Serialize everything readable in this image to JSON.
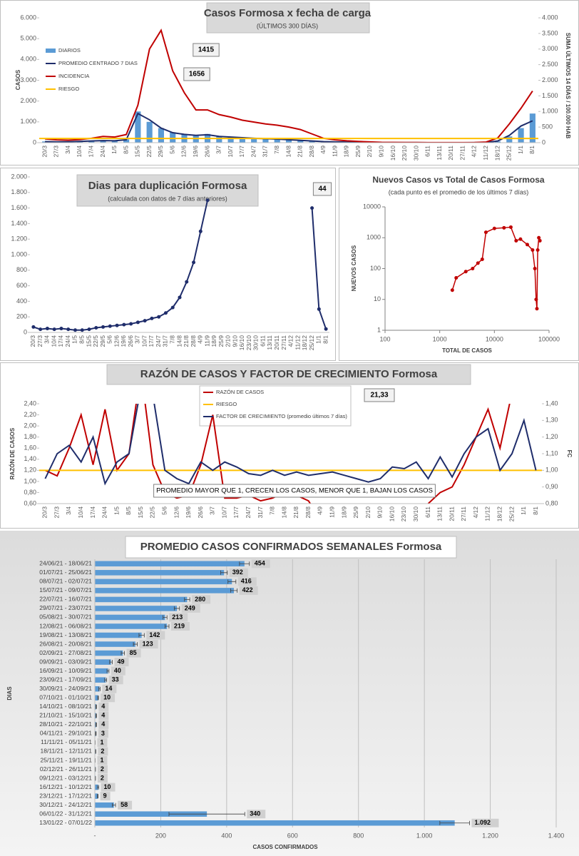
{
  "chart_data": [
    {
      "type": "combo",
      "title": "Casos Formosa x fecha de carga",
      "subtitle": "(ÚLTIMOS 300 DÍAS)",
      "y_label": "CASOS",
      "y2_label": "SUMA ÚLTIMOS 14 DÍAS / 100.000 HAB",
      "annotations": [
        "1415",
        "1656"
      ],
      "categories": [
        "20/3",
        "27/3",
        "3/4",
        "10/4",
        "17/4",
        "24/4",
        "1/5",
        "8/5",
        "15/5",
        "22/5",
        "29/5",
        "5/6",
        "12/6",
        "19/6",
        "26/6",
        "3/7",
        "10/7",
        "17/7",
        "24/7",
        "31/7",
        "7/8",
        "14/8",
        "21/8",
        "28/8",
        "4/9",
        "11/9",
        "18/9",
        "25/9",
        "2/10",
        "9/10",
        "16/10",
        "23/10",
        "30/10",
        "6/11",
        "13/11",
        "20/11",
        "27/11",
        "4/12",
        "11/12",
        "18/12",
        "25/12",
        "1/1",
        "8/1"
      ],
      "series": [
        {
          "name": "DIARIOS",
          "type": "bar",
          "color": "#5b9bd5",
          "values": [
            60,
            40,
            50,
            70,
            90,
            110,
            90,
            160,
            1500,
            1000,
            700,
            500,
            400,
            350,
            420,
            300,
            280,
            250,
            220,
            200,
            180,
            150,
            120,
            90,
            50,
            40,
            30,
            20,
            10,
            5,
            5,
            3,
            3,
            2,
            2,
            2,
            2,
            2,
            5,
            60,
            300,
            700,
            1400
          ]
        },
        {
          "name": "PROMEDIO CENTRADO 7 DIAS",
          "type": "line",
          "color": "#1f2d6b",
          "values": [
            50,
            40,
            45,
            60,
            80,
            100,
            90,
            140,
            1400,
            1100,
            700,
            480,
            400,
            350,
            380,
            300,
            270,
            240,
            210,
            190,
            170,
            140,
            110,
            80,
            50,
            40,
            28,
            18,
            10,
            5,
            4,
            3,
            3,
            2,
            2,
            2,
            2,
            3,
            10,
            80,
            350,
            800,
            1050
          ]
        },
        {
          "name": "INCIDENCIA",
          "type": "line",
          "axis": "y2",
          "color": "#c00000",
          "values": [
            120,
            90,
            80,
            100,
            140,
            200,
            180,
            260,
            1200,
            3000,
            3600,
            2300,
            1600,
            1050,
            1050,
            900,
            820,
            720,
            660,
            600,
            560,
            500,
            420,
            280,
            140,
            90,
            60,
            40,
            25,
            12,
            8,
            6,
            5,
            4,
            4,
            4,
            4,
            6,
            20,
            150,
            600,
            1100,
            1656
          ]
        },
        {
          "name": "RIESGO",
          "type": "line",
          "axis": "y2",
          "color": "#ffc000",
          "value": 133
        }
      ],
      "ylim": [
        0,
        6000
      ],
      "yticks": [
        0,
        {
          "value": 1000,
          "label": "1.000"
        },
        {
          "value": 2000,
          "label": "2.000"
        },
        {
          "value": 3000,
          "label": "3.000"
        },
        {
          "value": 4000,
          "label": "4.000"
        },
        {
          "value": 5000,
          "label": "5.000"
        },
        {
          "value": 6000,
          "label": "6.000"
        }
      ],
      "y2lim": [
        0,
        4000
      ],
      "y2ticks": [
        0,
        500,
        {
          "value": 1000,
          "label": "1.000"
        },
        {
          "value": 1500,
          "label": "1.500"
        },
        {
          "value": 2000,
          "label": "2.000"
        },
        {
          "value": 2500,
          "label": "2.500"
        },
        {
          "value": 3000,
          "label": "3.000"
        },
        {
          "value": 3500,
          "label": "3.500"
        },
        {
          "value": 4000,
          "label": "4.000"
        }
      ],
      "grid": false,
      "legend": "upper-left"
    },
    {
      "type": "line",
      "title": "Dias para duplicación Formosa",
      "subtitle": "(calculada con datos de 7 días anteriores)",
      "annotations": [
        "44"
      ],
      "categories": [
        "20/3",
        "27/3",
        "3/4",
        "10/4",
        "17/4",
        "24/4",
        "1/5",
        "8/5",
        "15/5",
        "22/5",
        "29/5",
        "5/6",
        "12/6",
        "19/6",
        "26/6",
        "3/7",
        "10/7",
        "17/7",
        "24/7",
        "31/7",
        "7/8",
        "14/8",
        "21/8",
        "28/8",
        "4/9",
        "11/9",
        "18/9",
        "25/9",
        "2/10",
        "9/10",
        "16/10",
        "23/10",
        "30/10",
        "6/11",
        "13/11",
        "20/11",
        "27/11",
        "4/12",
        "11/12",
        "18/12",
        "25/12",
        "1/1",
        "8/1"
      ],
      "series": [
        {
          "name": null,
          "color": "#1f2d6b",
          "values": [
            70,
            40,
            50,
            40,
            50,
            40,
            30,
            30,
            40,
            60,
            70,
            80,
            90,
            100,
            110,
            130,
            150,
            180,
            200,
            250,
            320,
            450,
            650,
            900,
            1300,
            1700,
            null,
            null,
            null,
            null,
            null,
            null,
            null,
            null,
            null,
            null,
            null,
            null,
            null,
            null,
            1600,
            300,
            44
          ]
        }
      ],
      "ylim": [
        0,
        2000
      ],
      "yticks": [
        0,
        200,
        400,
        600,
        800,
        {
          "value": 1000,
          "label": "1.000"
        },
        {
          "value": 1200,
          "label": "1.200"
        },
        {
          "value": 1400,
          "label": "1.400"
        },
        {
          "value": 1600,
          "label": "1.600"
        },
        {
          "value": 1800,
          "label": "1.800"
        },
        {
          "value": 2000,
          "label": "2.000"
        }
      ],
      "grid": false
    },
    {
      "type": "scatter",
      "title": "Nuevos Casos vs Total de Casos Formosa",
      "subtitle": "(cada punto es el promedio de los últimos 7 días)",
      "x_label": "TOTAL DE CASOS",
      "y_label": "NUEVOS CASOS",
      "color": "#c00000",
      "x": [
        1700,
        2000,
        3000,
        4000,
        5000,
        6000,
        7000,
        10000,
        15000,
        20000,
        25000,
        30000,
        40000,
        50000,
        55000,
        58000,
        60000,
        62000,
        65000,
        68000
      ],
      "values": [
        20,
        50,
        80,
        100,
        150,
        200,
        1500,
        2000,
        2100,
        2200,
        800,
        900,
        600,
        400,
        100,
        10,
        5,
        400,
        1000,
        800
      ],
      "xlim": [
        100,
        100000
      ],
      "xticks": [
        100,
        1000,
        10000,
        100000
      ],
      "ylim": [
        1,
        10000
      ],
      "yticks": [
        1,
        10,
        100,
        1000,
        10000
      ],
      "log_x": true,
      "log_y": true,
      "grid": false
    },
    {
      "type": "line",
      "title": "RAZÓN DE CASOS Y FACTOR DE CRECIMIENTO Formosa",
      "y_label": "RAZÓN DE CASOS",
      "y2_label": "FC",
      "annotations": [
        "21,33",
        "PROMEDIO MAYOR QUE 1, CRECEN LOS CASOS, MENOR QUE 1, BAJAN LOS CASOS"
      ],
      "categories": [
        "20/3",
        "27/3",
        "3/4",
        "10/4",
        "17/4",
        "24/4",
        "1/5",
        "8/5",
        "15/5",
        "22/5",
        "5/6",
        "12/6",
        "19/6",
        "26/6",
        "3/7",
        "10/7",
        "17/7",
        "24/7",
        "31/7",
        "7/8",
        "14/8",
        "21/8",
        "28/8",
        "4/9",
        "11/9",
        "18/9",
        "25/9",
        "2/10",
        "9/10",
        "16/10",
        "23/10",
        "30/10",
        "6/11",
        "13/11",
        "20/11",
        "27/11",
        "4/12",
        "11/12",
        "18/12",
        "25/12",
        "1/1",
        "8/1"
      ],
      "series": [
        {
          "name": "RAZÓN DE CASOS",
          "color": "#c00000",
          "values": [
            1.2,
            1.1,
            1.6,
            2.2,
            1.3,
            2.3,
            1.2,
            1.5,
            3.0,
            1.3,
            0.8,
            0.7,
            0.75,
            1.3,
            2.2,
            0.7,
            0.7,
            0.75,
            0.65,
            0.7,
            0.8,
            0.75,
            0.65,
            0.3,
            null,
            null,
            null,
            null,
            null,
            null,
            null,
            null,
            0.6,
            0.8,
            0.9,
            1.3,
            1.8,
            2.3,
            1.6,
            2.6,
            null,
            null
          ]
        },
        {
          "name": "RIESGO",
          "color": "#ffc000",
          "axis": "y2",
          "value": 1.0
        },
        {
          "name": "FACTOR DE CRECIMIENTO (promedio últimos 7 días)",
          "color": "#1f2d6b",
          "axis": "y2",
          "values": [
            0.95,
            1.1,
            1.15,
            1.05,
            1.2,
            0.92,
            1.05,
            1.1,
            1.5,
            1.45,
            1.0,
            0.95,
            0.92,
            1.05,
            1.0,
            1.05,
            1.02,
            0.98,
            0.97,
            1.0,
            0.97,
            0.99,
            0.97,
            0.98,
            0.99,
            0.97,
            0.95,
            0.93,
            0.95,
            1.02,
            1.01,
            1.05,
            0.95,
            1.08,
            0.96,
            1.1,
            1.2,
            1.25,
            1.0,
            1.1,
            1.3,
            1.0
          ]
        }
      ],
      "ylim": [
        0.6,
        2.4
      ],
      "yticks": [
        {
          "value": 0.6,
          "label": "0,60"
        },
        {
          "value": 0.8,
          "label": "0,80"
        },
        {
          "value": 1.0,
          "label": "1,00"
        },
        {
          "value": 1.2,
          "label": "1,20"
        },
        {
          "value": 1.4,
          "label": "1,40"
        },
        {
          "value": 1.6,
          "label": "1,60"
        },
        {
          "value": 1.8,
          "label": "1,80"
        },
        {
          "value": 2.0,
          "label": "2,00"
        },
        {
          "value": 2.2,
          "label": "2,20"
        },
        {
          "value": 2.4,
          "label": "2,40"
        }
      ],
      "y2lim": [
        0.8,
        1.4
      ],
      "y2ticks": [
        {
          "value": 0.8,
          "label": "0,80"
        },
        {
          "value": 0.9,
          "label": "0,90"
        },
        {
          "value": 1.0,
          "label": "1,00"
        },
        {
          "value": 1.1,
          "label": "1,10"
        },
        {
          "value": 1.2,
          "label": "1,20"
        },
        {
          "value": 1.3,
          "label": "1,30"
        },
        {
          "value": 1.4,
          "label": "1,40"
        }
      ],
      "grid": false,
      "legend": "upper-center"
    },
    {
      "type": "hbar",
      "title": "PROMEDIO CASOS CONFIRMADOS SEMANALES Formosa",
      "x_label": "CASOS CONFIRMADOS",
      "y_label": "DIAS",
      "color": "#5b9bd5",
      "categories": [
        "24/06/21 - 18/06/21",
        "01/07/21 - 25/06/21",
        "08/07/21 - 02/07/21",
        "15/07/21 - 09/07/21",
        "22/07/21 - 16/07/21",
        "29/07/21 - 23/07/21",
        "05/08/21 - 30/07/21",
        "12/08/21 - 06/08/21",
        "19/08/21 - 13/08/21",
        "26/08/21 - 20/08/21",
        "02/09/21 - 27/08/21",
        "09/09/21 - 03/09/21",
        "16/09/21 - 10/09/21",
        "23/09/21 - 17/09/21",
        "30/09/21 - 24/09/21",
        "07/10/21 - 01/10/21",
        "14/10/21 - 08/10/21",
        "21/10/21 - 15/10/21",
        "28/10/21 - 22/10/21",
        "04/11/21 - 29/10/21",
        "11/11/21 - 05/11/21",
        "18/11/21 - 12/11/21",
        "25/11/21 - 19/11/21",
        "02/12/21 - 26/11/21",
        "09/12/21 - 03/12/21",
        "16/12/21 - 10/12/21",
        "23/12/21 - 17/12/21",
        "30/12/21 - 24/12/21",
        "06/01/22 - 31/12/21",
        "13/01/22 - 07/01/22"
      ],
      "values": [
        454,
        392,
        416,
        422,
        280,
        249,
        213,
        219,
        142,
        123,
        85,
        49,
        40,
        33,
        14,
        10,
        4,
        4,
        4,
        3,
        1,
        2,
        1,
        2,
        2,
        10,
        9,
        58,
        340,
        1092
      ],
      "value_labels": [
        "454",
        "392",
        "416",
        "422",
        "280",
        "249",
        "213",
        "219",
        "142",
        "123",
        "85",
        "49",
        "40",
        "33",
        "14",
        "10",
        "4",
        "4",
        "4",
        "3",
        "1",
        "2",
        "1",
        "2",
        "2",
        "10",
        "9",
        "58",
        "340",
        "1.092"
      ],
      "errors": [
        15,
        10,
        12,
        10,
        8,
        8,
        6,
        6,
        8,
        6,
        5,
        4,
        3,
        3,
        2,
        1,
        1,
        1,
        1,
        1,
        0,
        1,
        0,
        0,
        0,
        2,
        1,
        5,
        115,
        45
      ],
      "xlim": [
        0,
        1400
      ],
      "xticks": [
        {
          "value": 0,
          "label": "-"
        },
        200,
        400,
        600,
        800,
        {
          "value": 1000,
          "label": "1.000"
        },
        {
          "value": 1200,
          "label": "1.200"
        },
        {
          "value": 1400,
          "label": "1.400"
        }
      ],
      "grid": true
    }
  ]
}
